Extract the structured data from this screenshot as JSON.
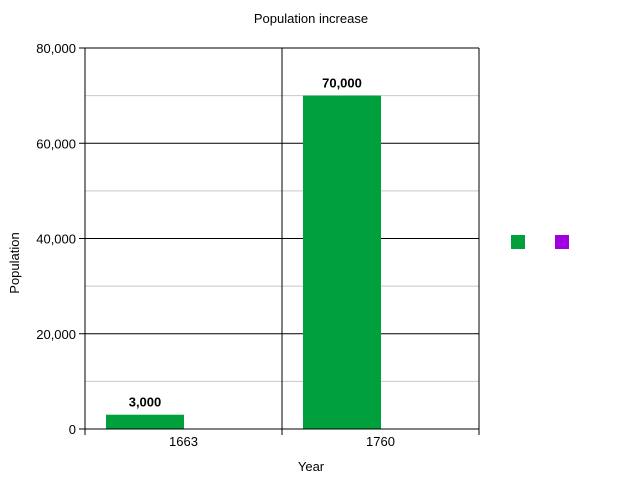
{
  "chart_data": {
    "type": "bar",
    "title": "Population increase",
    "xlabel": "Year",
    "ylabel": "Population",
    "categories": [
      "1663",
      "1760"
    ],
    "series": [
      {
        "values": [
          3000,
          70000
        ],
        "color": "#00A03C",
        "data_labels": [
          "3,000",
          "70,000"
        ]
      },
      {
        "values": [
          0,
          0
        ],
        "color": "#A000E0"
      }
    ],
    "ylim": [
      0,
      80000
    ],
    "yticks": [
      {
        "value": 0,
        "label": "0"
      },
      {
        "value": 20000,
        "label": "20,000"
      },
      {
        "value": 40000,
        "label": "40,000"
      },
      {
        "value": 60000,
        "label": "60,000"
      },
      {
        "value": 80000,
        "label": "80,000"
      }
    ],
    "minor_gridline_values": [
      10000,
      30000,
      50000,
      70000
    ],
    "grid": true,
    "legend_position": "right",
    "legend_markers": [
      "#00A03C",
      "#A000E0"
    ]
  }
}
